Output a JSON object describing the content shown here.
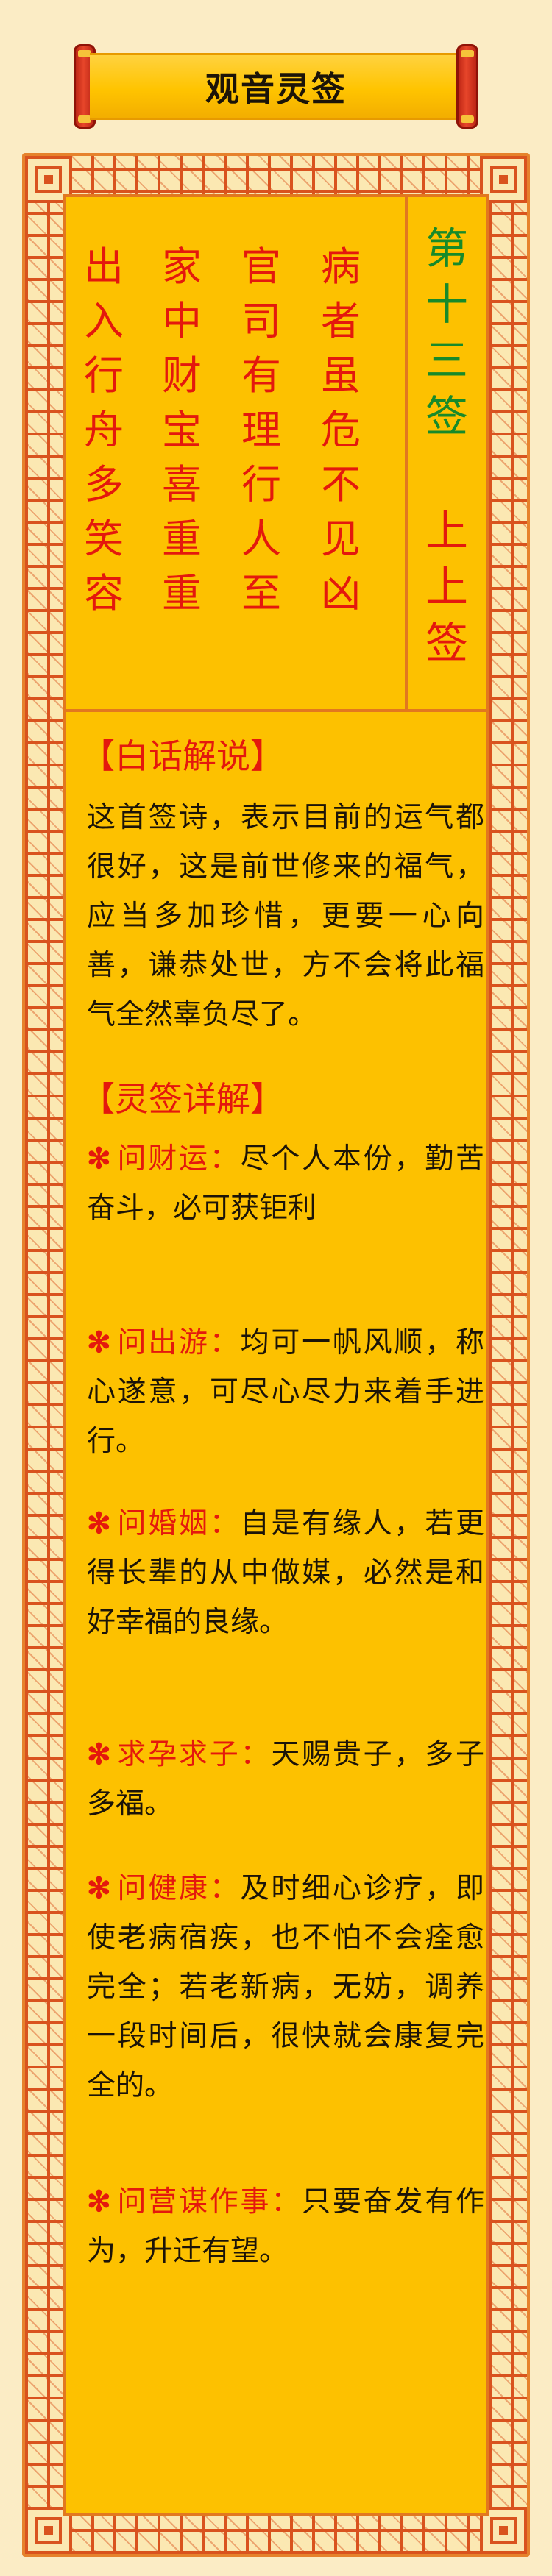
{
  "title": "观音灵签",
  "poem": {
    "columns": [
      [
        "出",
        "入",
        "行",
        "舟",
        "多",
        "笑",
        "容"
      ],
      [
        "家",
        "中",
        "财",
        "宝",
        "喜",
        "重",
        "重"
      ],
      [
        "官",
        "司",
        "有",
        "理",
        "行",
        "人",
        "至"
      ],
      [
        "病",
        "者",
        "虽",
        "危",
        "不",
        "见",
        "凶"
      ]
    ]
  },
  "sign": {
    "number_chars": [
      "第",
      "十",
      "三",
      "签"
    ],
    "rank_chars": [
      "上",
      "上",
      "签"
    ]
  },
  "explanation": {
    "heading": "【白话解说】",
    "text": "这首签诗，表示目前的运气都很好，这是前世修来的福气，应当多加珍惜，更要一心向善，谦恭处世，方不会将此福气全然辜负尽了。"
  },
  "details": {
    "heading": "【灵签详解】",
    "mark": "✻",
    "items": [
      {
        "q": "问财运：",
        "a": "尽个人本份，勤苦奋斗，必可获钜利"
      },
      {
        "q": "问出游：",
        "a": "均可一帆风顺，称心遂意，可尽心尽力来着手进行。"
      },
      {
        "q": "问婚姻：",
        "a": "自是有缘人，若更得长辈的从中做媒，必然是和好幸福的良缘。"
      },
      {
        "q": "求孕求子：",
        "a": "天赐贵子，多子多福。"
      },
      {
        "q": "问健康：",
        "a": "及时细心诊疗，即使老病宿疾，也不怕不会痊愈完全；若老新病，无妨，调养一段时间后，很快就会康复完全的。"
      },
      {
        "q": "问营谋作事：",
        "a": "只要奋发有作为，升迁有望。"
      }
    ]
  },
  "colors": {
    "panel": "#FDC100",
    "frame": "#D9531E",
    "red_text": "#E4180D",
    "green_text": "#178A2A",
    "page_bg": "#FBECC5"
  }
}
